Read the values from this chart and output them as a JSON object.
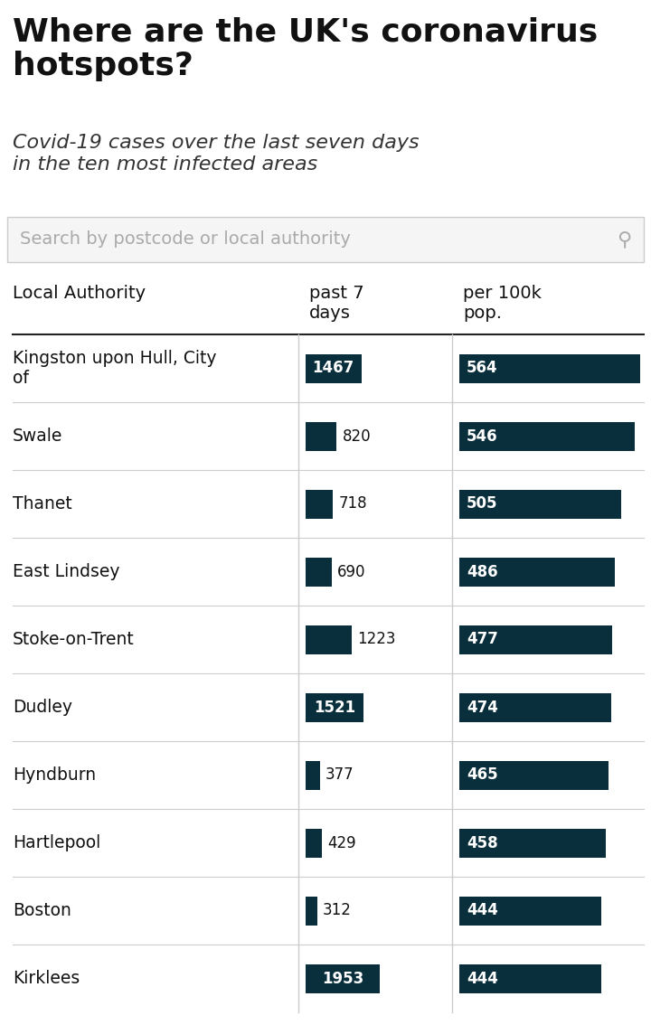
{
  "title": "Where are the UK's coronavirus\nhotspots?",
  "subtitle": "Covid-19 cases over the last seven days\nin the ten most infected areas",
  "search_placeholder": "Search by postcode or local authority",
  "col_header_authority": "Local Authority",
  "col_header_days": "past 7\ndays",
  "col_header_per100k": "per 100k\npop.",
  "rows": [
    {
      "name": "Kingston upon Hull, City\nof",
      "days": 1467,
      "per100k": 564
    },
    {
      "name": "Swale",
      "days": 820,
      "per100k": 546
    },
    {
      "name": "Thanet",
      "days": 718,
      "per100k": 505
    },
    {
      "name": "East Lindsey",
      "days": 690,
      "per100k": 486
    },
    {
      "name": "Stoke-on-Trent",
      "days": 1223,
      "per100k": 477
    },
    {
      "name": "Dudley",
      "days": 1521,
      "per100k": 474
    },
    {
      "name": "Hyndburn",
      "days": 377,
      "per100k": 465
    },
    {
      "name": "Hartlepool",
      "days": 429,
      "per100k": 458
    },
    {
      "name": "Boston",
      "days": 312,
      "per100k": 444
    },
    {
      "name": "Kirklees",
      "days": 1953,
      "per100k": 444
    }
  ],
  "bar_color": "#0a2f3c",
  "text_on_bar_color": "#ffffff",
  "background_color": "#ffffff",
  "search_box_color": "#f5f5f5",
  "search_text_color": "#aaaaaa",
  "divider_color": "#cccccc",
  "header_line_color": "#222222",
  "max_days": 1953,
  "max_per100k": 564
}
